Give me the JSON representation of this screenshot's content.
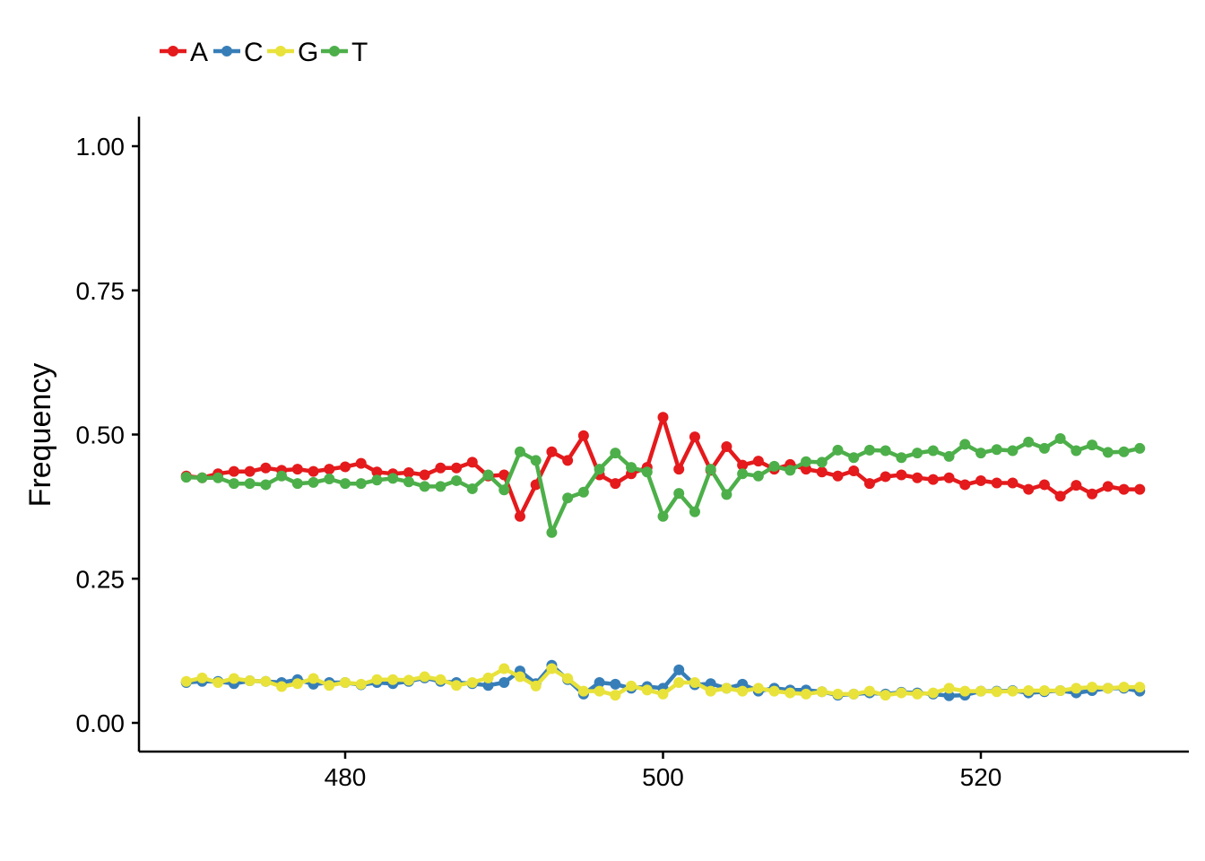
{
  "chart_data": {
    "type": "line",
    "title": "",
    "xlabel": "",
    "ylabel": "Frequency",
    "xlim": [
      467,
      533
    ],
    "ylim": [
      -0.05,
      1.05
    ],
    "xticks": [
      480,
      500,
      520
    ],
    "yticks": [
      0.0,
      0.25,
      0.5,
      0.75,
      1.0
    ],
    "ytick_labels": [
      "0.00",
      "0.25",
      "0.50",
      "0.75",
      "1.00"
    ],
    "grid": false,
    "legend_position": "top-left",
    "legend_labels": [
      "A",
      "C",
      "G",
      "T"
    ],
    "x": [
      470,
      471,
      472,
      473,
      474,
      475,
      476,
      477,
      478,
      479,
      480,
      481,
      482,
      483,
      484,
      485,
      486,
      487,
      488,
      489,
      490,
      491,
      492,
      493,
      494,
      495,
      496,
      497,
      498,
      499,
      500,
      501,
      502,
      503,
      504,
      505,
      506,
      507,
      508,
      509,
      510,
      511,
      512,
      513,
      514,
      515,
      516,
      517,
      518,
      519,
      520,
      521,
      522,
      523,
      524,
      525,
      526,
      527,
      528,
      529,
      530
    ],
    "series": [
      {
        "name": "A",
        "color": "#e41a1c",
        "values": [
          0.428,
          0.425,
          0.432,
          0.436,
          0.436,
          0.442,
          0.438,
          0.44,
          0.436,
          0.44,
          0.444,
          0.45,
          0.435,
          0.432,
          0.434,
          0.43,
          0.442,
          0.442,
          0.452,
          0.428,
          0.43,
          0.358,
          0.413,
          0.47,
          0.455,
          0.498,
          0.43,
          0.415,
          0.432,
          0.443,
          0.53,
          0.44,
          0.496,
          0.438,
          0.479,
          0.447,
          0.454,
          0.44,
          0.448,
          0.44,
          0.435,
          0.428,
          0.437,
          0.415,
          0.427,
          0.43,
          0.425,
          0.422,
          0.425,
          0.413,
          0.42,
          0.416,
          0.416,
          0.405,
          0.413,
          0.393,
          0.412,
          0.397,
          0.41,
          0.405,
          0.405
        ]
      },
      {
        "name": "C",
        "color": "#377eb8",
        "values": [
          0.07,
          0.072,
          0.072,
          0.068,
          0.073,
          0.072,
          0.07,
          0.075,
          0.067,
          0.07,
          0.07,
          0.066,
          0.07,
          0.068,
          0.072,
          0.078,
          0.072,
          0.07,
          0.068,
          0.065,
          0.07,
          0.09,
          0.068,
          0.1,
          0.075,
          0.05,
          0.07,
          0.067,
          0.06,
          0.063,
          0.06,
          0.092,
          0.066,
          0.068,
          0.06,
          0.067,
          0.055,
          0.06,
          0.057,
          0.057,
          0.054,
          0.048,
          0.05,
          0.052,
          0.05,
          0.053,
          0.052,
          0.05,
          0.047,
          0.048,
          0.055,
          0.055,
          0.056,
          0.052,
          0.054,
          0.056,
          0.052,
          0.056,
          0.06,
          0.06,
          0.055
        ]
      },
      {
        "name": "G",
        "color": "#e8e23b",
        "values": [
          0.072,
          0.078,
          0.07,
          0.077,
          0.073,
          0.072,
          0.063,
          0.068,
          0.077,
          0.065,
          0.07,
          0.067,
          0.075,
          0.075,
          0.074,
          0.08,
          0.075,
          0.065,
          0.07,
          0.078,
          0.094,
          0.08,
          0.064,
          0.094,
          0.077,
          0.055,
          0.055,
          0.048,
          0.064,
          0.057,
          0.05,
          0.07,
          0.07,
          0.055,
          0.06,
          0.055,
          0.06,
          0.055,
          0.052,
          0.05,
          0.054,
          0.05,
          0.05,
          0.055,
          0.048,
          0.052,
          0.05,
          0.052,
          0.06,
          0.055,
          0.055,
          0.054,
          0.055,
          0.056,
          0.056,
          0.056,
          0.06,
          0.062,
          0.06,
          0.062,
          0.062
        ]
      },
      {
        "name": "T",
        "color": "#4daf4a",
        "values": [
          0.426,
          0.425,
          0.425,
          0.415,
          0.415,
          0.413,
          0.428,
          0.415,
          0.417,
          0.423,
          0.415,
          0.415,
          0.421,
          0.424,
          0.418,
          0.41,
          0.41,
          0.42,
          0.406,
          0.43,
          0.404,
          0.47,
          0.455,
          0.33,
          0.39,
          0.4,
          0.44,
          0.468,
          0.443,
          0.435,
          0.358,
          0.398,
          0.366,
          0.44,
          0.396,
          0.432,
          0.428,
          0.445,
          0.438,
          0.453,
          0.452,
          0.473,
          0.46,
          0.473,
          0.472,
          0.46,
          0.468,
          0.472,
          0.462,
          0.483,
          0.468,
          0.474,
          0.472,
          0.487,
          0.476,
          0.493,
          0.472,
          0.482,
          0.469,
          0.47,
          0.476
        ]
      }
    ]
  }
}
